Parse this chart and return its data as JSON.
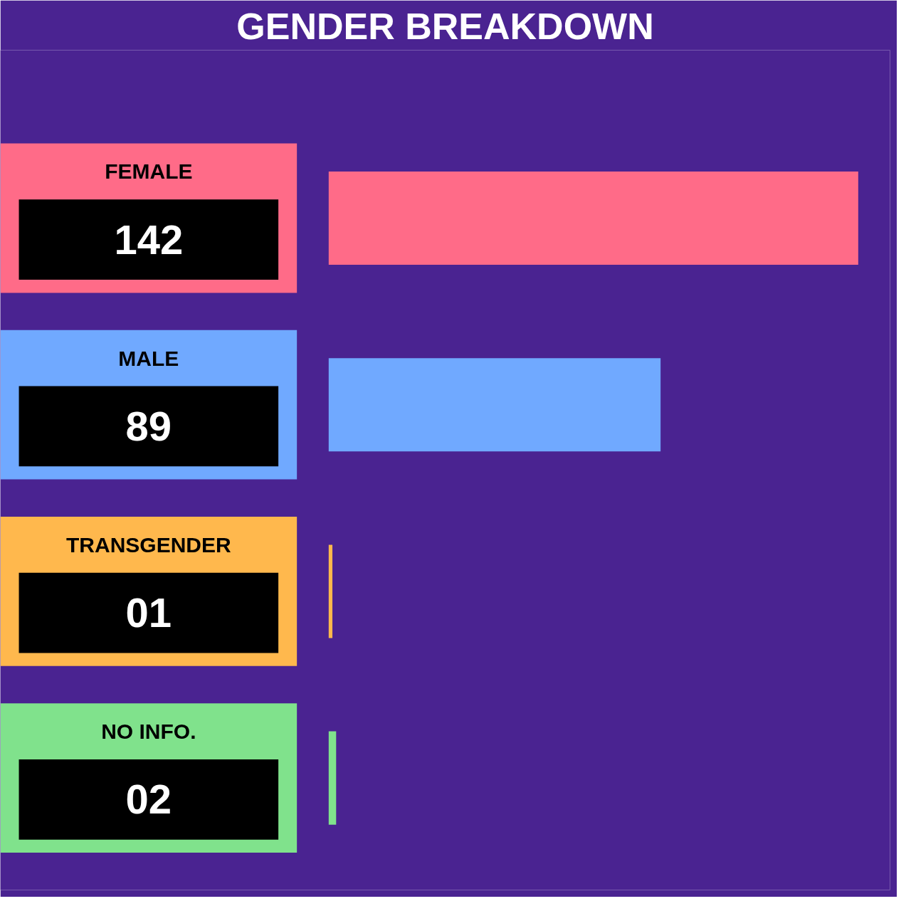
{
  "chart_data": {
    "type": "bar",
    "orientation": "horizontal",
    "title": "GENDER BREAKDOWN",
    "categories": [
      "FEMALE",
      "MALE",
      "TRANSGENDER",
      "NO INFO."
    ],
    "values": [
      142,
      89,
      1,
      2
    ],
    "value_labels": [
      "142",
      "89",
      "01",
      "02"
    ],
    "colors": [
      "#ff6b88",
      "#70a9ff",
      "#ffb84d",
      "#80e28c"
    ]
  }
}
